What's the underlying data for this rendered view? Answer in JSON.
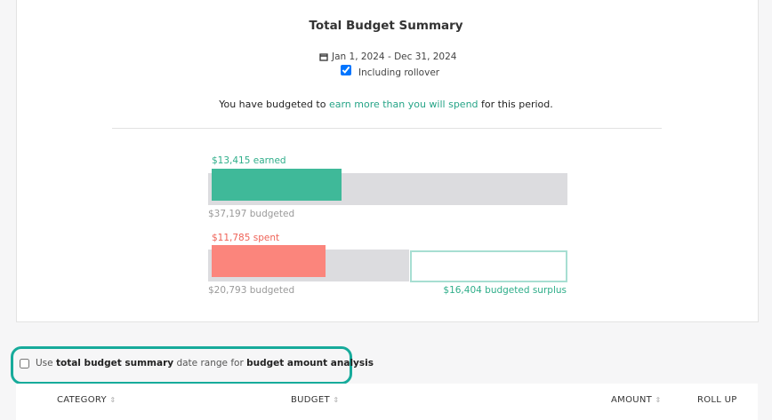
{
  "header": {
    "title": "Total Budget Summary",
    "date_range": "Jan 1, 2024 - Dec 31, 2024",
    "rollover_label": "Including rollover",
    "rollover_checked": true
  },
  "message": {
    "before": "You have budgeted to ",
    "highlight": "earn more than you will spend",
    "after": " for this period."
  },
  "income": {
    "actual": 13415,
    "actual_label": "$13,415 earned",
    "budgeted": 37197,
    "budgeted_label": "$37,197 budgeted"
  },
  "expense": {
    "actual": 11785,
    "actual_label": "$11,785 spent",
    "budgeted": 20793,
    "budgeted_label": "$20,793 budgeted",
    "surplus": 16404,
    "surplus_label": "$16,404 budgeted surplus"
  },
  "option": {
    "parts": [
      "Use ",
      "total budget summary",
      " date range for ",
      "budget amount analysis"
    ],
    "checked": false
  },
  "table": {
    "columns": [
      "CATEGORY",
      "BUDGET",
      "AMOUNT",
      "ROLL UP"
    ]
  }
}
